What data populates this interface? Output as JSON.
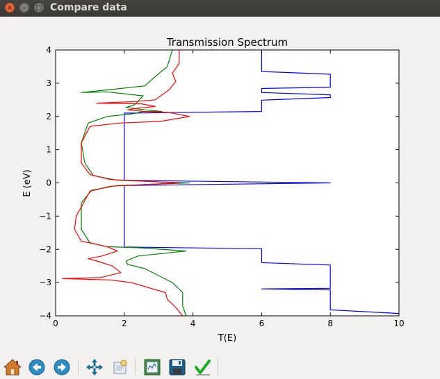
{
  "window": {
    "title": "Compare data",
    "close_glyph": "×",
    "minimize_glyph": "–",
    "maximize_glyph": "□"
  },
  "toolbar": {
    "buttons": [
      {
        "icon": "home-icon"
      },
      {
        "icon": "back-arrow-icon"
      },
      {
        "icon": "forward-arrow-icon"
      },
      {
        "icon": "pan-move-icon"
      },
      {
        "icon": "zoom-rect-icon"
      },
      {
        "icon": "configure-subplots-icon"
      },
      {
        "icon": "save-floppy-icon"
      },
      {
        "icon": "edit-checkmark-icon"
      }
    ]
  },
  "colors": {
    "series_blue": "#0000ff",
    "series_green": "#008000",
    "series_red": "#ff0000"
  },
  "chart_data": {
    "type": "line",
    "title": "Transmission Spectrum",
    "xlabel": "T(E)",
    "ylabel": "E (eV)",
    "xlim": [
      0,
      10
    ],
    "ylim": [
      -4,
      4
    ],
    "xticks": [
      0,
      2,
      4,
      6,
      8,
      10
    ],
    "yticks": [
      -4,
      -3,
      -2,
      -1,
      0,
      1,
      2,
      3,
      4
    ],
    "grid": false,
    "series": [
      {
        "color": "#0000ff",
        "points": [
          [
            6.0,
            4.0
          ],
          [
            6.0,
            3.35
          ],
          [
            8.0,
            3.27
          ],
          [
            8.0,
            2.88
          ],
          [
            6.0,
            2.84
          ],
          [
            6.0,
            2.72
          ],
          [
            8.0,
            2.65
          ],
          [
            8.0,
            2.57
          ],
          [
            6.0,
            2.49
          ],
          [
            6.0,
            2.15
          ],
          [
            2.0,
            2.1
          ],
          [
            2.0,
            0.08
          ],
          [
            8.0,
            0.0
          ],
          [
            2.0,
            -0.08
          ],
          [
            2.0,
            -1.93
          ],
          [
            6.0,
            -1.98
          ],
          [
            6.0,
            -2.4
          ],
          [
            8.0,
            -2.47
          ],
          [
            8.0,
            -3.17
          ],
          [
            6.0,
            -3.19
          ],
          [
            8.0,
            -3.22
          ],
          [
            8.0,
            -3.82
          ],
          [
            10.0,
            -3.93
          ]
        ]
      },
      {
        "color": "#008000",
        "points": [
          [
            3.4,
            4.0
          ],
          [
            3.25,
            3.5
          ],
          [
            2.9,
            3.2
          ],
          [
            2.6,
            2.92
          ],
          [
            1.7,
            2.82
          ],
          [
            0.75,
            2.72
          ],
          [
            1.5,
            2.74
          ],
          [
            2.55,
            2.62
          ],
          [
            2.3,
            2.35
          ],
          [
            2.05,
            2.27
          ],
          [
            2.6,
            2.2
          ],
          [
            3.1,
            2.15
          ],
          [
            2.55,
            2.15
          ],
          [
            2.25,
            2.08
          ],
          [
            1.5,
            2.0
          ],
          [
            0.95,
            1.8
          ],
          [
            0.75,
            1.2
          ],
          [
            0.85,
            0.6
          ],
          [
            1.1,
            0.22
          ],
          [
            1.8,
            0.08
          ],
          [
            3.9,
            0.0
          ],
          [
            1.8,
            -0.08
          ],
          [
            1.05,
            -0.22
          ],
          [
            0.75,
            -0.6
          ],
          [
            0.75,
            -1.4
          ],
          [
            1.0,
            -1.8
          ],
          [
            1.5,
            -1.92
          ],
          [
            2.4,
            -1.95
          ],
          [
            3.8,
            -2.05
          ],
          [
            2.4,
            -2.2
          ],
          [
            2.05,
            -2.35
          ],
          [
            2.1,
            -2.45
          ],
          [
            2.6,
            -2.58
          ],
          [
            3.4,
            -3.0
          ],
          [
            3.7,
            -3.3
          ],
          [
            3.7,
            -3.7
          ],
          [
            3.8,
            -4.0
          ]
        ]
      },
      {
        "color": "#ff0000",
        "points": [
          [
            3.6,
            4.0
          ],
          [
            3.6,
            3.6
          ],
          [
            3.4,
            3.3
          ],
          [
            3.5,
            3.05
          ],
          [
            3.3,
            2.8
          ],
          [
            2.9,
            2.5
          ],
          [
            2.35,
            2.45
          ],
          [
            1.2,
            2.4
          ],
          [
            2.5,
            2.38
          ],
          [
            2.9,
            2.3
          ],
          [
            2.4,
            2.25
          ],
          [
            2.1,
            2.2
          ],
          [
            2.6,
            2.15
          ],
          [
            3.3,
            2.12
          ],
          [
            3.9,
            2.0
          ],
          [
            3.05,
            1.85
          ],
          [
            1.85,
            1.8
          ],
          [
            1.0,
            1.7
          ],
          [
            0.75,
            1.2
          ],
          [
            0.75,
            0.6
          ],
          [
            1.0,
            0.25
          ],
          [
            1.6,
            0.1
          ],
          [
            3.6,
            0.0
          ],
          [
            1.6,
            -0.1
          ],
          [
            1.0,
            -0.25
          ],
          [
            0.6,
            -1.0
          ],
          [
            0.55,
            -1.4
          ],
          [
            0.75,
            -1.75
          ],
          [
            1.5,
            -1.92
          ],
          [
            1.8,
            -2.05
          ],
          [
            1.35,
            -2.2
          ],
          [
            0.95,
            -2.28
          ],
          [
            1.2,
            -2.35
          ],
          [
            1.65,
            -2.5
          ],
          [
            1.9,
            -2.7
          ],
          [
            1.3,
            -2.85
          ],
          [
            0.2,
            -2.88
          ],
          [
            1.6,
            -2.92
          ],
          [
            2.2,
            -3.0
          ],
          [
            3.2,
            -3.3
          ],
          [
            3.25,
            -3.5
          ],
          [
            3.5,
            -3.75
          ],
          [
            3.7,
            -4.0
          ]
        ]
      }
    ]
  }
}
